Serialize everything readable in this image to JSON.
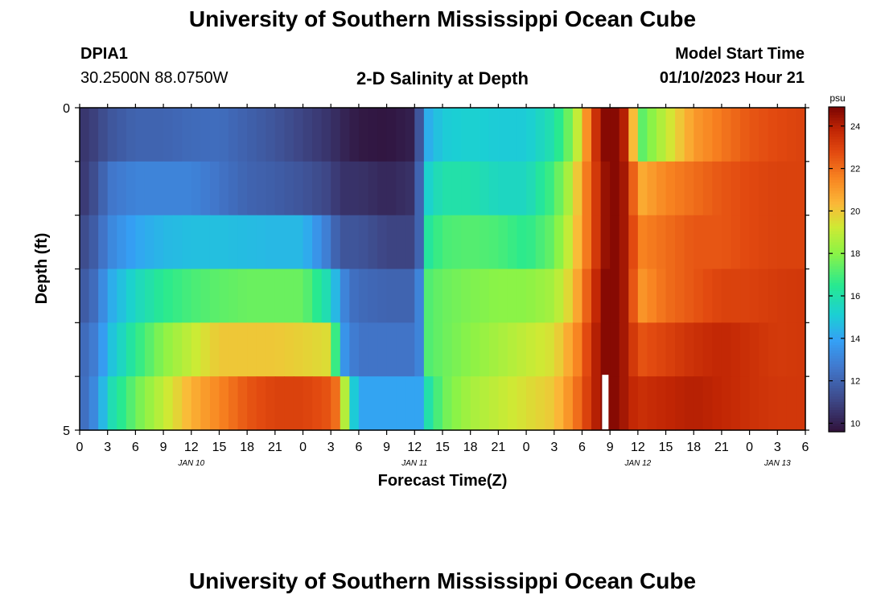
{
  "page": {
    "title_top": "University of Southern Mississippi Ocean Cube",
    "title_bottom": "University of Southern Mississippi Ocean Cube"
  },
  "header": {
    "station": "DPIA1",
    "coords": "30.2500N  88.0750W",
    "subtitle": "2-D Salinity at Depth",
    "model_label": "Model Start Time",
    "model_time": "01/10/2023 Hour 21"
  },
  "colors": {
    "missing": "#ffffff",
    "axis": "#000000"
  },
  "chart_data": {
    "type": "heatmap",
    "title": "2-D Salinity at Depth",
    "xlabel": "Forecast Time(Z)",
    "ylabel": "Depth (ft)",
    "colorbar_label": "psu",
    "value_range": [
      9.6,
      24.9
    ],
    "colorbar_ticks": [
      "10",
      "12",
      "14",
      "16",
      "18",
      "20",
      "22",
      "24"
    ],
    "colorbar_tick_values": [
      10,
      12,
      14,
      16,
      18,
      20,
      22,
      24
    ],
    "y_tick_labels": [
      "0",
      "5"
    ],
    "y_range": [
      0,
      5
    ],
    "x_range_hours": [
      0,
      78
    ],
    "x_tick_labels": [
      "0",
      "3",
      "6",
      "9",
      "12",
      "15",
      "18",
      "21",
      "0",
      "3",
      "6",
      "9",
      "12",
      "15",
      "18",
      "21",
      "0",
      "3",
      "6",
      "9",
      "12",
      "15",
      "18",
      "21",
      "0",
      "3",
      "6"
    ],
    "x_tick_hours": [
      0,
      3,
      6,
      9,
      12,
      15,
      18,
      21,
      24,
      27,
      30,
      33,
      36,
      39,
      42,
      45,
      48,
      51,
      54,
      57,
      60,
      63,
      66,
      69,
      72,
      75,
      78
    ],
    "date_labels": [
      "JAN 10",
      "JAN 11",
      "JAN 12",
      "JAN 13"
    ],
    "date_label_hours": [
      12,
      36,
      60,
      75
    ],
    "depth_layers_ft": [
      0,
      1,
      2,
      3,
      4,
      5
    ],
    "missing_value": {
      "hour": 56.5,
      "depth_index": 5
    },
    "key_hours": [
      0,
      2,
      3,
      6,
      9,
      12,
      15,
      18,
      21,
      24,
      27,
      28,
      29,
      30,
      33,
      36,
      36.5,
      37,
      39,
      42,
      45,
      48,
      51,
      53,
      54,
      55,
      56,
      57,
      58,
      59,
      60,
      63,
      66,
      69,
      72,
      75,
      78
    ],
    "salinity_rows": [
      [
        10.5,
        11.0,
        11.5,
        12.0,
        12.0,
        12.2,
        12.3,
        11.9,
        11.5,
        11.0,
        10.5,
        10.2,
        10.0,
        9.8,
        9.7,
        10.0,
        11.5,
        14.0,
        15.0,
        15.2,
        15.0,
        15.0,
        16.0,
        18.0,
        20.0,
        22.5,
        24.5,
        24.9,
        24.5,
        23.5,
        17.0,
        19.0,
        21.0,
        21.8,
        22.5,
        22.8,
        23.0
      ],
      [
        10.5,
        11.5,
        12.5,
        13.0,
        13.0,
        13.0,
        12.5,
        12.0,
        11.8,
        11.5,
        11.0,
        10.5,
        10.5,
        10.5,
        10.2,
        10.5,
        12.0,
        15.0,
        16.0,
        16.0,
        15.5,
        15.5,
        17.0,
        19.0,
        21.0,
        22.5,
        24.0,
        24.9,
        24.5,
        24.0,
        20.5,
        21.5,
        22.0,
        22.5,
        22.8,
        23.0,
        23.0
      ],
      [
        11.0,
        12.0,
        13.0,
        14.0,
        14.5,
        14.7,
        14.7,
        14.6,
        14.5,
        14.5,
        12.5,
        11.5,
        11.5,
        11.5,
        11.0,
        11.0,
        12.0,
        16.0,
        17.0,
        17.2,
        17.0,
        16.5,
        17.5,
        19.5,
        21.0,
        22.5,
        24.0,
        24.9,
        24.5,
        24.0,
        21.5,
        22.0,
        22.5,
        22.5,
        22.8,
        23.0,
        23.0
      ],
      [
        11.5,
        12.5,
        14.0,
        15.5,
        16.5,
        17.0,
        17.3,
        17.5,
        17.5,
        17.5,
        15.5,
        13.5,
        12.5,
        12.2,
        12.0,
        12.0,
        13.0,
        17.0,
        17.5,
        17.8,
        18.0,
        18.0,
        18.5,
        20.0,
        21.5,
        23.0,
        24.5,
        24.9,
        24.5,
        24.0,
        21.0,
        22.0,
        22.5,
        23.0,
        23.0,
        23.2,
        23.3
      ],
      [
        12.0,
        13.0,
        14.5,
        16.5,
        18.0,
        19.0,
        20.0,
        20.0,
        20.0,
        19.8,
        19.5,
        14.0,
        13.0,
        12.5,
        12.5,
        12.5,
        13.0,
        17.0,
        17.5,
        18.0,
        18.5,
        19.0,
        19.5,
        21.0,
        22.0,
        23.5,
        24.5,
        24.9,
        24.5,
        24.0,
        22.5,
        23.0,
        23.5,
        23.8,
        23.5,
        23.2,
        23.3
      ],
      [
        12.0,
        13.5,
        15.5,
        17.5,
        19.0,
        20.5,
        21.5,
        22.5,
        23.0,
        23.0,
        22.5,
        21.5,
        16.0,
        14.0,
        14.0,
        14.0,
        14.0,
        15.5,
        17.5,
        18.5,
        19.0,
        19.5,
        20.0,
        21.5,
        22.5,
        23.5,
        24.5,
        24.9,
        24.5,
        24.0,
        23.5,
        23.8,
        24.0,
        23.8,
        23.5,
        23.3,
        23.3
      ]
    ]
  }
}
